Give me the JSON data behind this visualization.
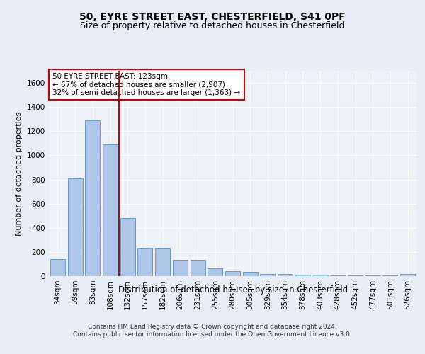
{
  "title1": "50, EYRE STREET EAST, CHESTERFIELD, S41 0PF",
  "title2": "Size of property relative to detached houses in Chesterfield",
  "xlabel": "Distribution of detached houses by size in Chesterfield",
  "ylabel": "Number of detached properties",
  "categories": [
    "34sqm",
    "59sqm",
    "83sqm",
    "108sqm",
    "132sqm",
    "157sqm",
    "182sqm",
    "206sqm",
    "231sqm",
    "255sqm",
    "280sqm",
    "305sqm",
    "329sqm",
    "354sqm",
    "378sqm",
    "403sqm",
    "428sqm",
    "452sqm",
    "477sqm",
    "501sqm",
    "526sqm"
  ],
  "values": [
    140,
    810,
    1290,
    1090,
    480,
    235,
    235,
    135,
    135,
    65,
    40,
    35,
    20,
    20,
    10,
    10,
    5,
    5,
    5,
    5,
    15
  ],
  "bar_color": "#aec6e8",
  "bar_edge_color": "#5a8fc0",
  "vline_x": 3.5,
  "vline_color": "#cc0000",
  "annotation_text": "50 EYRE STREET EAST: 123sqm\n← 67% of detached houses are smaller (2,907)\n32% of semi-detached houses are larger (1,363) →",
  "annotation_box_color": "#ffffff",
  "annotation_box_edge_color": "#cc0000",
  "ylim": [
    0,
    1700
  ],
  "yticks": [
    0,
    200,
    400,
    600,
    800,
    1000,
    1200,
    1400,
    1600
  ],
  "bg_color": "#e8eef5",
  "plot_bg_color": "#edf2f9",
  "footer": "Contains HM Land Registry data © Crown copyright and database right 2024.\nContains public sector information licensed under the Open Government Licence v3.0.",
  "title1_fontsize": 10,
  "title2_fontsize": 9,
  "xlabel_fontsize": 8.5,
  "ylabel_fontsize": 8,
  "tick_fontsize": 7.5,
  "annotation_fontsize": 7.5,
  "footer_fontsize": 6.5
}
